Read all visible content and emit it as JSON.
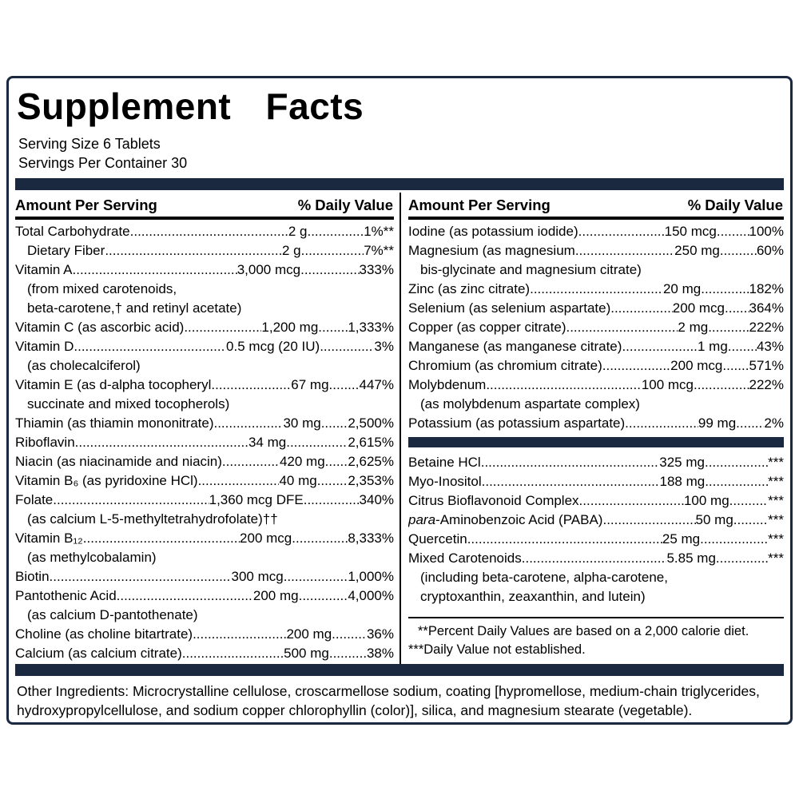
{
  "title": "Supplement Facts",
  "serving": {
    "size": "Serving Size 6 Tablets",
    "per_container": "Servings Per Container 30"
  },
  "headers": {
    "amount": "Amount Per Serving",
    "dv": "% Daily Value"
  },
  "left_rows": [
    {
      "name": "Total Carbohydrate",
      "amount": "2 g",
      "dv": "1%**"
    },
    {
      "name": "Dietary Fiber",
      "amount": "2 g",
      "dv": "7%**",
      "indent": true
    },
    {
      "name": "Vitamin A",
      "amount": "3,000 mcg",
      "dv": "333%"
    },
    {
      "cont": "(from mixed carotenoids,"
    },
    {
      "cont": "beta-carotene,† and retinyl acetate)"
    },
    {
      "name": "Vitamin C (as ascorbic acid)",
      "amount": "1,200 mg",
      "dv": "1,333%"
    },
    {
      "name": "Vitamin D",
      "amount": "0.5 mcg (20 IU)",
      "dv": "3%"
    },
    {
      "cont": "(as cholecalciferol)"
    },
    {
      "name": "Vitamin E (as d-alpha tocopheryl",
      "amount": "67 mg",
      "dv": "447%"
    },
    {
      "cont": "succinate and mixed tocopherols)"
    },
    {
      "name": "Thiamin (as thiamin mononitrate)",
      "amount": "30 mg",
      "dv": "2,500%"
    },
    {
      "name": "Riboflavin",
      "amount": "34 mg",
      "dv": "2,615%"
    },
    {
      "name": "Niacin (as niacinamide and niacin)",
      "amount": "420 mg",
      "dv": "2,625%"
    },
    {
      "name": "Vitamin B₆ (as pyridoxine HCl)",
      "amount": "40 mg",
      "dv": "2,353%"
    },
    {
      "name": "Folate",
      "amount": "1,360 mcg DFE",
      "dv": "340%"
    },
    {
      "cont": "(as calcium L-5-methyltetrahydrofolate)††"
    },
    {
      "name": "Vitamin B₁₂",
      "amount": "200 mcg",
      "dv": "8,333%"
    },
    {
      "cont": "(as methylcobalamin)"
    },
    {
      "name": "Biotin",
      "amount": "300 mcg",
      "dv": "1,000%"
    },
    {
      "name": "Pantothenic Acid",
      "amount": "200 mg",
      "dv": "4,000%"
    },
    {
      "cont": "(as calcium D-pantothenate)"
    },
    {
      "name": "Choline (as choline bitartrate)",
      "amount": "200 mg",
      "dv": "36%"
    },
    {
      "name": "Calcium (as calcium citrate)",
      "amount": "500 mg",
      "dv": "38%"
    }
  ],
  "right_rows_minerals": [
    {
      "name": "Iodine (as potassium iodide)",
      "amount": "150 mcg",
      "dv": "100%"
    },
    {
      "name": "Magnesium (as magnesium",
      "amount": "250 mg",
      "dv": "60%"
    },
    {
      "cont": "bis-glycinate and magnesium citrate)"
    },
    {
      "name": "Zinc (as zinc citrate)",
      "amount": "20 mg",
      "dv": "182%"
    },
    {
      "name": "Selenium (as selenium aspartate)",
      "amount": "200 mcg",
      "dv": "364%"
    },
    {
      "name": "Copper (as copper citrate)",
      "amount": "2 mg",
      "dv": "222%"
    },
    {
      "name": "Manganese (as manganese citrate)",
      "amount": "1 mg",
      "dv": "43%"
    },
    {
      "name": "Chromium (as chromium citrate)",
      "amount": "200 mcg",
      "dv": "571%"
    },
    {
      "name": "Molybdenum",
      "amount": "100 mcg",
      "dv": "222%"
    },
    {
      "cont": "(as molybdenum aspartate complex)"
    },
    {
      "name": "Potassium (as potassium aspartate)",
      "amount": "99 mg",
      "dv": "2%"
    }
  ],
  "right_rows_other": [
    {
      "name": "Betaine HCl",
      "amount": "325 mg",
      "dv": "***"
    },
    {
      "name": "Myo-Inositol",
      "amount": "188 mg",
      "dv": "***"
    },
    {
      "name": "Citrus Bioflavonoid Complex",
      "amount": "100 mg",
      "dv": "***"
    },
    {
      "name": "para-Aminobenzoic Acid (PABA)",
      "amount": "50 mg",
      "dv": "***",
      "italic": "para"
    },
    {
      "name": "Quercetin",
      "amount": "25 mg",
      "dv": "***"
    },
    {
      "name": "Mixed Carotenoids",
      "amount": "5.85 mg",
      "dv": "***"
    },
    {
      "cont": "(including beta-carotene, alpha-carotene,"
    },
    {
      "cont": "cryptoxanthin, zeaxanthin, and lutein)"
    }
  ],
  "footnotes": [
    "**Percent Daily Values are based on a 2,000 calorie diet.",
    "***Daily Value not established."
  ],
  "other_ingredients": "Other Ingredients: Microcrystalline cellulose, croscarmellose sodium, coating [hypromellose, medium-chain triglycerides, hydroxypropylcellulose, and sodium copper chlorophyllin (color)], silica, and magnesium stearate (vegetable).",
  "colors": {
    "bar_navy": "#1b2940",
    "text": "#000000"
  }
}
